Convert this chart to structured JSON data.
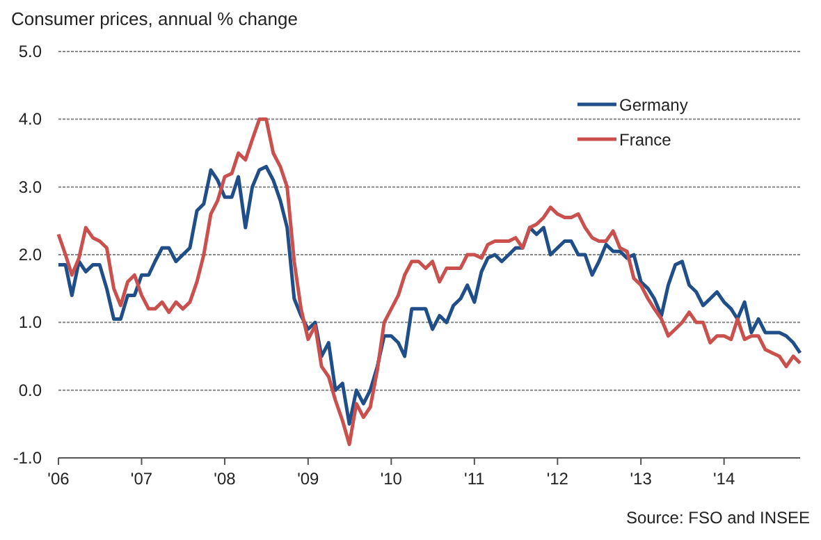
{
  "chart_data": {
    "type": "line",
    "title": "Consumer prices, annual % change",
    "x": [
      "2006-01",
      "2006-02",
      "2006-03",
      "2006-04",
      "2006-05",
      "2006-06",
      "2006-07",
      "2006-08",
      "2006-09",
      "2006-10",
      "2006-11",
      "2006-12",
      "2007-01",
      "2007-02",
      "2007-03",
      "2007-04",
      "2007-05",
      "2007-06",
      "2007-07",
      "2007-08",
      "2007-09",
      "2007-10",
      "2007-11",
      "2007-12",
      "2008-01",
      "2008-02",
      "2008-03",
      "2008-04",
      "2008-05",
      "2008-06",
      "2008-07",
      "2008-08",
      "2008-09",
      "2008-10",
      "2008-11",
      "2008-12",
      "2009-01",
      "2009-02",
      "2009-03",
      "2009-04",
      "2009-05",
      "2009-06",
      "2009-07",
      "2009-08",
      "2009-09",
      "2009-10",
      "2009-11",
      "2009-12",
      "2010-01",
      "2010-02",
      "2010-03",
      "2010-04",
      "2010-05",
      "2010-06",
      "2010-07",
      "2010-08",
      "2010-09",
      "2010-10",
      "2010-11",
      "2010-12",
      "2011-01",
      "2011-02",
      "2011-03",
      "2011-04",
      "2011-05",
      "2011-06",
      "2011-07",
      "2011-08",
      "2011-09",
      "2011-10",
      "2011-11",
      "2011-12",
      "2012-01",
      "2012-02",
      "2012-03",
      "2012-04",
      "2012-05",
      "2012-06",
      "2012-07",
      "2012-08",
      "2012-09",
      "2012-10",
      "2012-11",
      "2012-12",
      "2013-01",
      "2013-02",
      "2013-03",
      "2013-04",
      "2013-05",
      "2013-06",
      "2013-07",
      "2013-08",
      "2013-09",
      "2013-10",
      "2013-11",
      "2013-12",
      "2014-01",
      "2014-02",
      "2014-03",
      "2014-04",
      "2014-05",
      "2014-06",
      "2014-07",
      "2014-08",
      "2014-09",
      "2014-10",
      "2014-11",
      "2014-12"
    ],
    "series": [
      {
        "name": "Germany",
        "color": "#1f4e89",
        "values": [
          1.85,
          1.85,
          1.4,
          1.9,
          1.75,
          1.85,
          1.85,
          1.5,
          1.05,
          1.05,
          1.4,
          1.4,
          1.7,
          1.7,
          1.9,
          2.1,
          2.1,
          1.9,
          2.0,
          2.1,
          2.65,
          2.75,
          3.25,
          3.1,
          2.85,
          2.85,
          3.15,
          2.4,
          3.0,
          3.25,
          3.3,
          3.1,
          2.8,
          2.4,
          1.35,
          1.1,
          0.9,
          1.0,
          0.5,
          0.7,
          0.0,
          0.1,
          -0.5,
          0.0,
          -0.2,
          0.0,
          0.35,
          0.8,
          0.8,
          0.7,
          0.5,
          1.2,
          1.2,
          1.2,
          0.9,
          1.1,
          1.0,
          1.25,
          1.35,
          1.55,
          1.3,
          1.75,
          1.95,
          2.0,
          1.9,
          2.0,
          2.1,
          2.1,
          2.4,
          2.3,
          2.4,
          2.0,
          2.1,
          2.2,
          2.2,
          2.0,
          2.0,
          1.7,
          1.9,
          2.15,
          2.05,
          2.05,
          1.95,
          2.0,
          1.6,
          1.5,
          1.35,
          1.1,
          1.55,
          1.85,
          1.9,
          1.55,
          1.45,
          1.25,
          1.35,
          1.45,
          1.3,
          1.2,
          1.05,
          1.3,
          0.85,
          1.05,
          0.85,
          0.85,
          0.85,
          0.8,
          0.7,
          0.55
        ]
      },
      {
        "name": "France",
        "color": "#c9504d",
        "values": [
          2.3,
          2.0,
          1.7,
          1.95,
          2.4,
          2.25,
          2.2,
          2.1,
          1.5,
          1.25,
          1.6,
          1.7,
          1.4,
          1.2,
          1.2,
          1.3,
          1.15,
          1.3,
          1.2,
          1.3,
          1.6,
          2.0,
          2.6,
          2.8,
          3.15,
          3.2,
          3.5,
          3.4,
          3.7,
          4.0,
          4.0,
          3.5,
          3.3,
          3.0,
          1.9,
          1.2,
          0.75,
          0.95,
          0.35,
          0.2,
          -0.15,
          -0.45,
          -0.8,
          -0.2,
          -0.4,
          -0.25,
          0.3,
          1.0,
          1.2,
          1.4,
          1.7,
          1.9,
          1.9,
          1.8,
          1.9,
          1.6,
          1.8,
          1.8,
          1.8,
          2.0,
          2.0,
          1.95,
          2.15,
          2.2,
          2.2,
          2.2,
          2.25,
          2.1,
          2.4,
          2.45,
          2.55,
          2.7,
          2.6,
          2.55,
          2.55,
          2.6,
          2.4,
          2.25,
          2.2,
          2.2,
          2.35,
          2.1,
          2.05,
          1.65,
          1.55,
          1.35,
          1.2,
          1.05,
          0.8,
          0.9,
          1.0,
          1.15,
          1.0,
          1.0,
          0.7,
          0.8,
          0.8,
          0.75,
          1.05,
          0.75,
          0.8,
          0.8,
          0.6,
          0.55,
          0.5,
          0.35,
          0.5,
          0.4
        ]
      }
    ],
    "xlim": [
      "2006-01",
      "2014-12"
    ],
    "xticks": [
      {
        "value": "2006",
        "label": "'06"
      },
      {
        "value": "2007",
        "label": "'07"
      },
      {
        "value": "2008",
        "label": "'08"
      },
      {
        "value": "2009",
        "label": "'09"
      },
      {
        "value": "2010",
        "label": "'10"
      },
      {
        "value": "2011",
        "label": "'11"
      },
      {
        "value": "2012",
        "label": "'12"
      },
      {
        "value": "2013",
        "label": "'13"
      },
      {
        "value": "2014",
        "label": "'14"
      }
    ],
    "ylim": [
      -1,
      5
    ],
    "yticks": [
      {
        "value": -1,
        "label": "-1.0"
      },
      {
        "value": 0,
        "label": "0.0"
      },
      {
        "value": 1,
        "label": "1.0"
      },
      {
        "value": 2,
        "label": "2.0"
      },
      {
        "value": 3,
        "label": "3.0"
      },
      {
        "value": 4,
        "label": "4.0"
      },
      {
        "value": 5,
        "label": "5.0"
      }
    ],
    "grid": "y",
    "legend": "top right",
    "line_style": "solid",
    "marker": "none",
    "annotations": [
      "Source: FSO and INSEE"
    ]
  }
}
